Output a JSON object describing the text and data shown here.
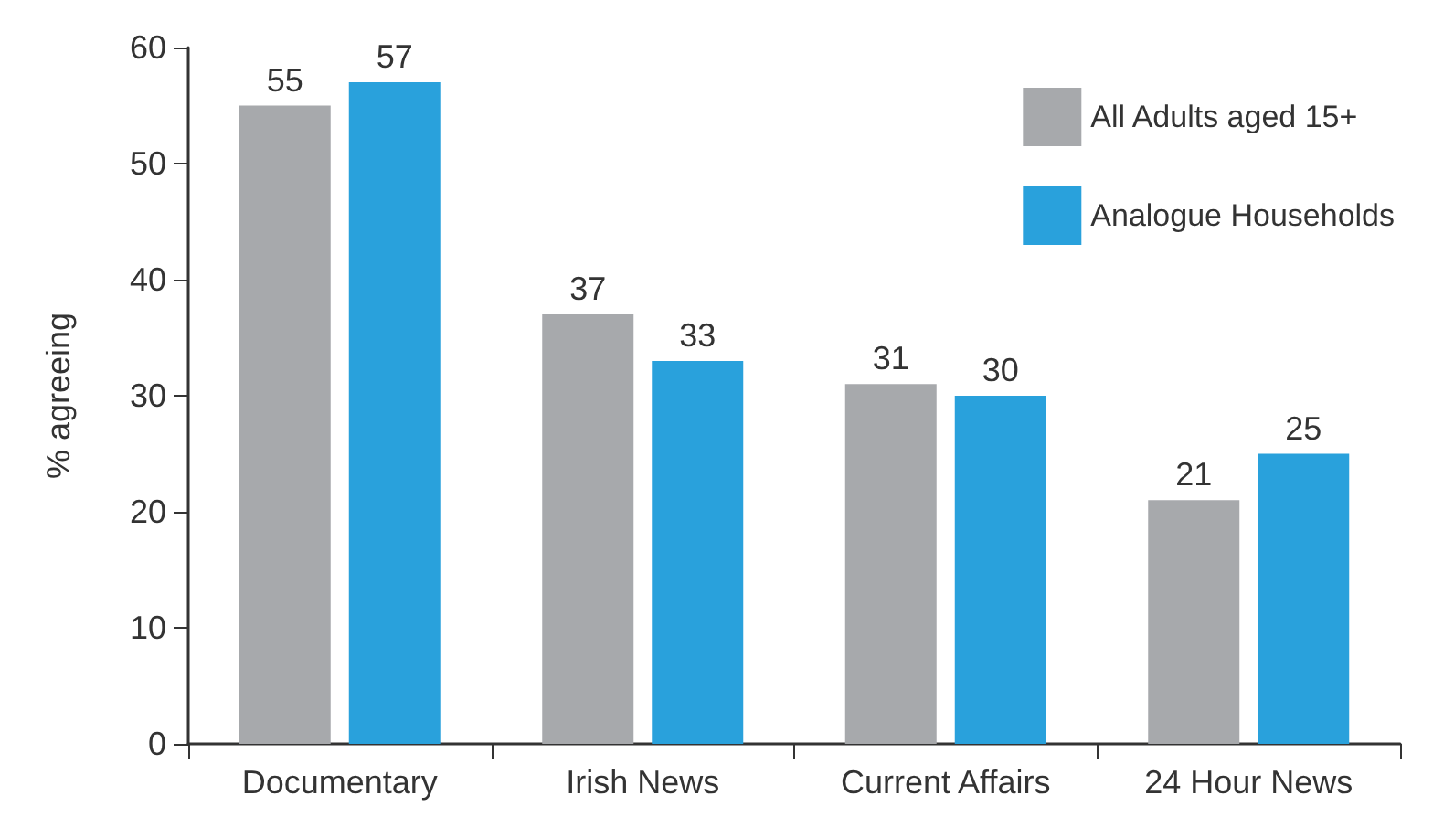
{
  "chart_data": {
    "type": "bar",
    "ylabel": "% agreeing",
    "categories": [
      "Documentary",
      "Irish News",
      "Current Affairs",
      "24 Hour News"
    ],
    "series": [
      {
        "name": "All Adults aged 15+",
        "color": "#a7a9ac",
        "values": [
          55,
          37,
          31,
          21
        ]
      },
      {
        "name": "Analogue Households",
        "color": "#29a1dc",
        "values": [
          57,
          33,
          30,
          25
        ]
      }
    ],
    "ylim": [
      0,
      60
    ],
    "yticks": [
      0,
      10,
      20,
      30,
      40,
      50,
      60
    ],
    "data_labels": true,
    "legend": "top right",
    "grid": false
  }
}
